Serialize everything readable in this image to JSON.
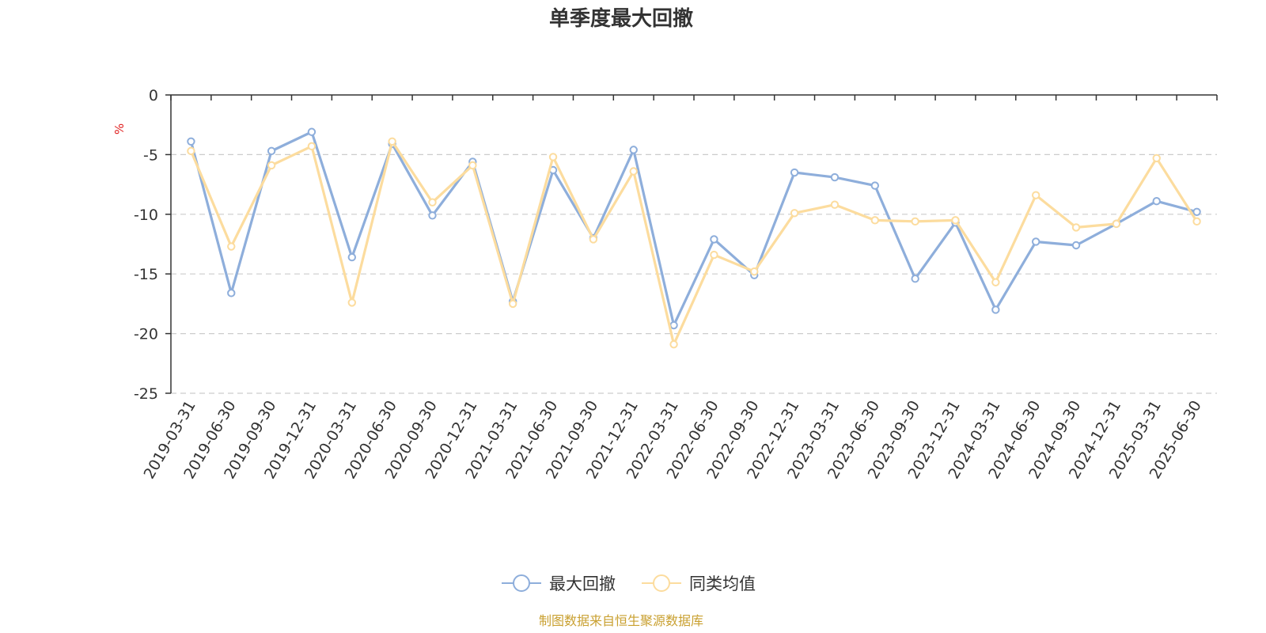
{
  "chart_data": {
    "type": "line",
    "title": "单季度最大回撤",
    "ylabel": "%",
    "xlabel": "",
    "ylim": [
      -25,
      0
    ],
    "yticks": [
      0,
      -5,
      -10,
      -15,
      -20,
      -25
    ],
    "grid": true,
    "legend_position": "bottom",
    "categories": [
      "2019-03-31",
      "2019-06-30",
      "2019-09-30",
      "2019-12-31",
      "2020-03-31",
      "2020-06-30",
      "2020-09-30",
      "2020-12-31",
      "2021-03-31",
      "2021-06-30",
      "2021-09-30",
      "2021-12-31",
      "2022-03-31",
      "2022-06-30",
      "2022-09-30",
      "2022-12-31",
      "2023-03-31",
      "2023-06-30",
      "2023-09-30",
      "2023-12-31",
      "2024-03-31",
      "2024-06-30",
      "2024-09-30",
      "2024-12-31",
      "2025-03-31",
      "2025-06-30"
    ],
    "series": [
      {
        "name": "最大回撤",
        "color": "#8eaedb",
        "values": [
          -3.9,
          -16.6,
          -4.7,
          -3.1,
          -13.6,
          -4.1,
          -10.1,
          -5.6,
          -17.3,
          -6.3,
          -12.0,
          -4.6,
          -19.3,
          -12.1,
          -15.1,
          -6.5,
          -6.9,
          -7.6,
          -15.4,
          -10.7,
          -18.0,
          -12.3,
          -12.6,
          -10.8,
          -8.9,
          -9.8
        ]
      },
      {
        "name": "同类均值",
        "color": "#fcdc9e",
        "values": [
          -4.7,
          -12.7,
          -5.9,
          -4.3,
          -17.4,
          -3.9,
          -9.0,
          -5.9,
          -17.5,
          -5.2,
          -12.1,
          -6.4,
          -20.9,
          -13.4,
          -14.8,
          -9.9,
          -9.2,
          -10.5,
          -10.6,
          -10.5,
          -15.7,
          -8.4,
          -11.1,
          -10.8,
          -5.3,
          -10.6
        ]
      }
    ],
    "source": "制图数据来自恒生聚源数据库",
    "colors": {
      "axis": "#333333",
      "grid": "#cccccc",
      "text": "#333333",
      "unit": "#e02020",
      "source": "#c9a030"
    }
  }
}
